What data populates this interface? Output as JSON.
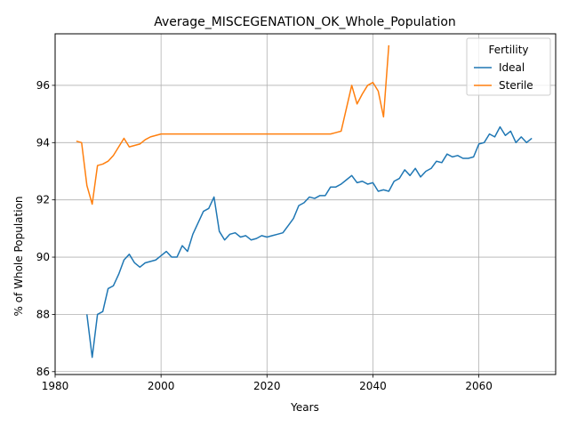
{
  "chart_data": {
    "type": "line",
    "title": "Average_MISCEGENATION_OK_Whole_Population",
    "xlabel": "Years",
    "ylabel": "% of Whole Population",
    "xlim": [
      1980,
      2074.5
    ],
    "ylim": [
      85.9,
      97.8
    ],
    "xticks": [
      1980,
      2000,
      2020,
      2040,
      2060
    ],
    "yticks": [
      86,
      88,
      90,
      92,
      94,
      96
    ],
    "grid": true,
    "legend": {
      "title": "Fertility",
      "position": "top-right"
    },
    "series": [
      {
        "name": "Ideal",
        "color": "#1f77b4",
        "x": [
          1986,
          1987,
          1988,
          1989,
          1990,
          1991,
          1992,
          1993,
          1994,
          1995,
          1996,
          1997,
          1998,
          1999,
          2000,
          2001,
          2002,
          2003,
          2004,
          2005,
          2006,
          2007,
          2008,
          2009,
          2010,
          2011,
          2012,
          2013,
          2014,
          2015,
          2016,
          2017,
          2018,
          2019,
          2020,
          2021,
          2022,
          2023,
          2024,
          2025,
          2026,
          2027,
          2028,
          2029,
          2030,
          2031,
          2032,
          2033,
          2034,
          2035,
          2036,
          2037,
          2038,
          2039,
          2040,
          2041,
          2042,
          2043,
          2044,
          2045,
          2046,
          2047,
          2048,
          2049,
          2050,
          2051,
          2052,
          2053,
          2054,
          2055,
          2056,
          2057,
          2058,
          2059,
          2060,
          2061,
          2062,
          2063,
          2064,
          2065,
          2066,
          2067,
          2068,
          2069,
          2070
        ],
        "y": [
          88.0,
          86.5,
          88.0,
          88.1,
          88.9,
          89.0,
          89.4,
          89.9,
          90.1,
          89.8,
          89.65,
          89.8,
          89.85,
          89.9,
          90.05,
          90.2,
          90.0,
          90.0,
          90.4,
          90.2,
          90.8,
          91.2,
          91.6,
          91.7,
          92.1,
          90.9,
          90.6,
          90.8,
          90.85,
          90.7,
          90.75,
          90.6,
          90.65,
          90.75,
          90.7,
          90.75,
          90.8,
          90.85,
          91.1,
          91.35,
          91.8,
          91.9,
          92.1,
          92.05,
          92.15,
          92.15,
          92.45,
          92.45,
          92.55,
          92.7,
          92.85,
          92.6,
          92.65,
          92.55,
          92.6,
          92.3,
          92.35,
          92.3,
          92.65,
          92.75,
          93.05,
          92.85,
          93.1,
          92.8,
          93.0,
          93.1,
          93.35,
          93.3,
          93.6,
          93.5,
          93.55,
          93.45,
          93.45,
          93.5,
          93.95,
          94.0,
          94.3,
          94.2,
          94.55,
          94.25,
          94.4,
          94.0,
          94.2,
          94.0,
          94.15
        ]
      },
      {
        "name": "Sterile",
        "color": "#ff7f0e",
        "x": [
          1984,
          1985,
          1986,
          1987,
          1988,
          1989,
          1990,
          1991,
          1992,
          1993,
          1994,
          1995,
          1996,
          1997,
          1998,
          1999,
          2000,
          2001,
          2002,
          2003,
          2004,
          2005,
          2006,
          2007,
          2008,
          2009,
          2010,
          2011,
          2012,
          2013,
          2014,
          2015,
          2016,
          2017,
          2018,
          2019,
          2020,
          2021,
          2022,
          2023,
          2024,
          2025,
          2026,
          2027,
          2028,
          2029,
          2030,
          2031,
          2032,
          2033,
          2034,
          2035,
          2036,
          2037,
          2038,
          2039,
          2040,
          2041,
          2042,
          2043
        ],
        "y": [
          94.05,
          94.0,
          92.5,
          91.85,
          93.2,
          93.25,
          93.35,
          93.55,
          93.85,
          94.15,
          93.85,
          93.9,
          93.95,
          94.1,
          94.2,
          94.25,
          94.3,
          94.3,
          94.3,
          94.3,
          94.3,
          94.3,
          94.3,
          94.3,
          94.3,
          94.3,
          94.3,
          94.3,
          94.3,
          94.3,
          94.3,
          94.3,
          94.3,
          94.3,
          94.3,
          94.3,
          94.3,
          94.3,
          94.3,
          94.3,
          94.3,
          94.3,
          94.3,
          94.3,
          94.3,
          94.3,
          94.3,
          94.3,
          94.3,
          94.35,
          94.4,
          95.2,
          96.0,
          95.35,
          95.7,
          96.0,
          96.1,
          95.8,
          94.9,
          97.4
        ]
      }
    ]
  }
}
